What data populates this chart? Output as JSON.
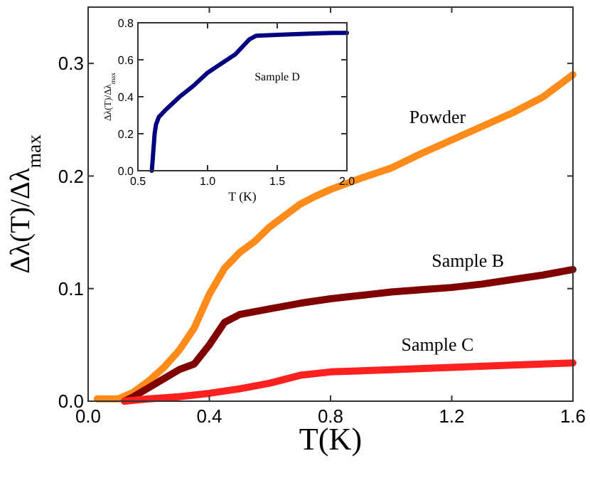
{
  "chart_data": [
    {
      "type": "line",
      "xlabel": "T(K)",
      "ylabel": "Δλ(T)/Δλ$_{max}$",
      "xlim": [
        0,
        1.6
      ],
      "ylim": [
        0,
        0.35
      ],
      "xticks": [
        {
          "value": 0,
          "label": "0.0"
        },
        0.4,
        0.8,
        1.2,
        1.6
      ],
      "yticks": [
        {
          "value": 0,
          "label": "0.0"
        },
        0.1,
        0.2,
        0.3
      ],
      "grid": false,
      "line_style": "solid",
      "series": [
        {
          "name": "Powder",
          "color": "#ff8c1a",
          "x": [
            0.03,
            0.1,
            0.15,
            0.2,
            0.25,
            0.3,
            0.35,
            0.4,
            0.45,
            0.5,
            0.55,
            0.6,
            0.65,
            0.7,
            0.75,
            0.8,
            0.9,
            1.0,
            1.1,
            1.2,
            1.3,
            1.4,
            1.5,
            1.6
          ],
          "values": [
            0.002,
            0.002,
            0.008,
            0.018,
            0.03,
            0.045,
            0.065,
            0.095,
            0.118,
            0.132,
            0.142,
            0.155,
            0.165,
            0.175,
            0.182,
            0.188,
            0.198,
            0.207,
            0.22,
            0.232,
            0.244,
            0.256,
            0.27,
            0.29
          ]
        },
        {
          "name": "Sample B",
          "color": "#800000",
          "x": [
            0.12,
            0.15,
            0.2,
            0.25,
            0.3,
            0.35,
            0.4,
            0.45,
            0.5,
            0.6,
            0.7,
            0.8,
            0.9,
            1.0,
            1.1,
            1.2,
            1.3,
            1.4,
            1.5,
            1.6
          ],
          "values": [
            0,
            0.004,
            0.012,
            0.02,
            0.028,
            0.033,
            0.05,
            0.07,
            0.077,
            0.082,
            0.087,
            0.091,
            0.094,
            0.097,
            0.099,
            0.101,
            0.104,
            0.108,
            0.112,
            0.117
          ]
        },
        {
          "name": "Sample C",
          "color": "#ff2020",
          "x": [
            0.12,
            0.2,
            0.3,
            0.4,
            0.5,
            0.6,
            0.7,
            0.8,
            1.0,
            1.2,
            1.4,
            1.6
          ],
          "values": [
            0,
            0.002,
            0.004,
            0.007,
            0.011,
            0.016,
            0.023,
            0.026,
            0.028,
            0.03,
            0.032,
            0.034
          ]
        }
      ]
    },
    {
      "type": "line",
      "xlabel": "T (K)",
      "ylabel": "Δλ(T)/Δλ$_{max}$",
      "xlim": [
        0.5,
        2.0
      ],
      "ylim": [
        0,
        0.8
      ],
      "xticks": [
        0.5,
        {
          "value": 1,
          "label": "1.0"
        },
        1.5,
        {
          "value": 2,
          "label": "2.0"
        }
      ],
      "yticks": [
        {
          "value": 0,
          "label": "0.0"
        },
        0.2,
        0.4,
        0.6,
        0.8
      ],
      "grid": false,
      "line_style": "solid",
      "series": [
        {
          "name": "Sample  D",
          "color": "#000080",
          "x": [
            0.6,
            0.61,
            0.62,
            0.63,
            0.65,
            0.7,
            0.8,
            0.9,
            1.0,
            1.1,
            1.2,
            1.25,
            1.3,
            1.35,
            1.5,
            1.7,
            1.9,
            2.0
          ],
          "values": [
            0,
            0.1,
            0.2,
            0.25,
            0.29,
            0.33,
            0.4,
            0.46,
            0.53,
            0.58,
            0.63,
            0.67,
            0.71,
            0.73,
            0.735,
            0.74,
            0.745,
            0.745
          ]
        }
      ]
    }
  ]
}
